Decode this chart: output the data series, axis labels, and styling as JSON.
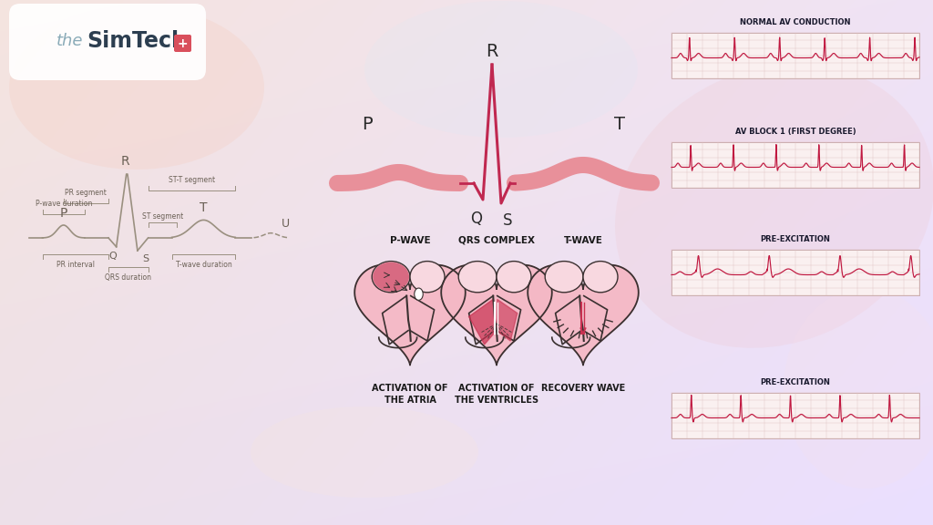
{
  "logo_color_the": "#8aabb8",
  "logo_color_sim": "#2c3e50",
  "logo_bg": "#ffffff",
  "logo_plus_color": "#d94f5c",
  "ecg_left_color": "#9a9080",
  "label_color": "#6a6055",
  "anno_color": "#9a9080",
  "title_color": "#1a1a2e",
  "section_titles": [
    "NORMAL AV CONDUCTION",
    "AV BLOCK 1 (FIRST DEGREE)",
    "PRE-EXCITATION",
    "PRE-EXCITATION"
  ],
  "heart_fill_outer": "#f5b8c5",
  "heart_fill_inner": "#f8d8e0",
  "heart_line": "#3a3030",
  "heart_deep": "#c83050",
  "center_bar_color": "#e8909a",
  "center_line_color": "#c02850",
  "activation_labels": [
    "P-WAVE",
    "QRS COMPLEX",
    "T-WAVE"
  ],
  "activation_sublabels": [
    "ACTIVATION OF\nTHE ATRIA",
    "ACTIVATION OF\nTHE VENTRICLES",
    "RECOVERY WAVE"
  ],
  "ecg_strip_bg": "#faf0f0",
  "ecg_strip_grid": "#e0c0c0",
  "ecg_strip_line": "#c01840"
}
